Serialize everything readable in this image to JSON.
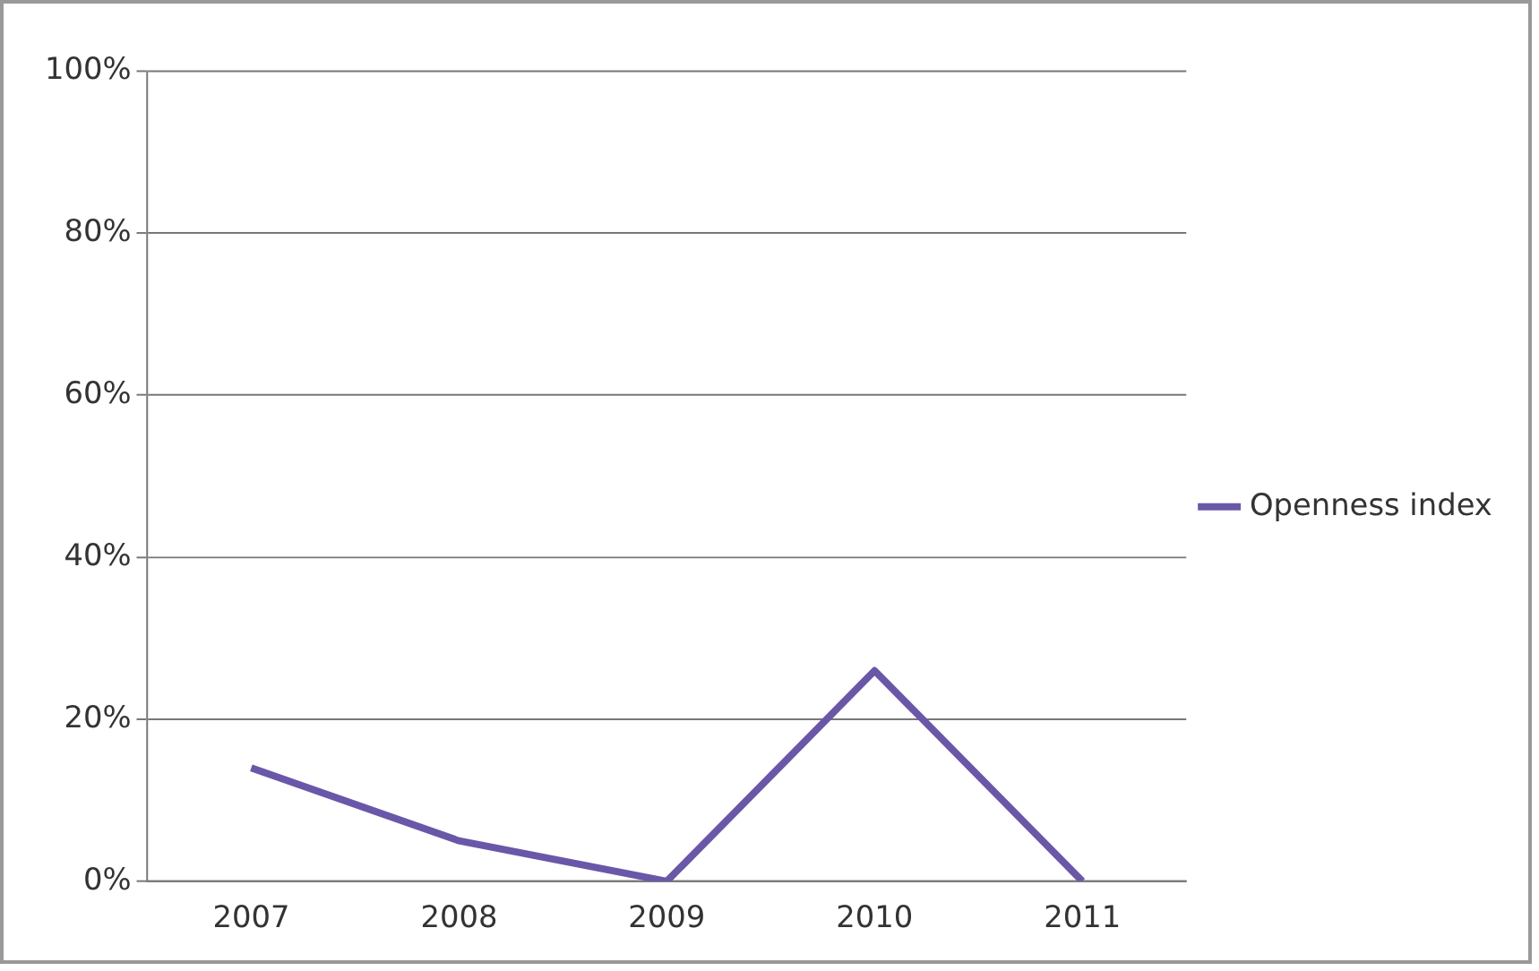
{
  "chart_data": {
    "type": "line",
    "categories": [
      "2007",
      "2008",
      "2009",
      "2010",
      "2011"
    ],
    "series": [
      {
        "name": "Openness index",
        "color": "#6a57a8",
        "values": [
          14,
          5,
          0,
          26,
          0
        ]
      }
    ],
    "ylim": [
      0,
      100
    ],
    "yticks": [
      {
        "value": 0,
        "label": "0%"
      },
      {
        "value": 20,
        "label": "20%"
      },
      {
        "value": 40,
        "label": "40%"
      },
      {
        "value": 60,
        "label": "60%"
      },
      {
        "value": 80,
        "label": "80%"
      },
      {
        "value": 100,
        "label": "100%"
      }
    ],
    "grid": "y",
    "legend": "right",
    "marker": "none"
  }
}
